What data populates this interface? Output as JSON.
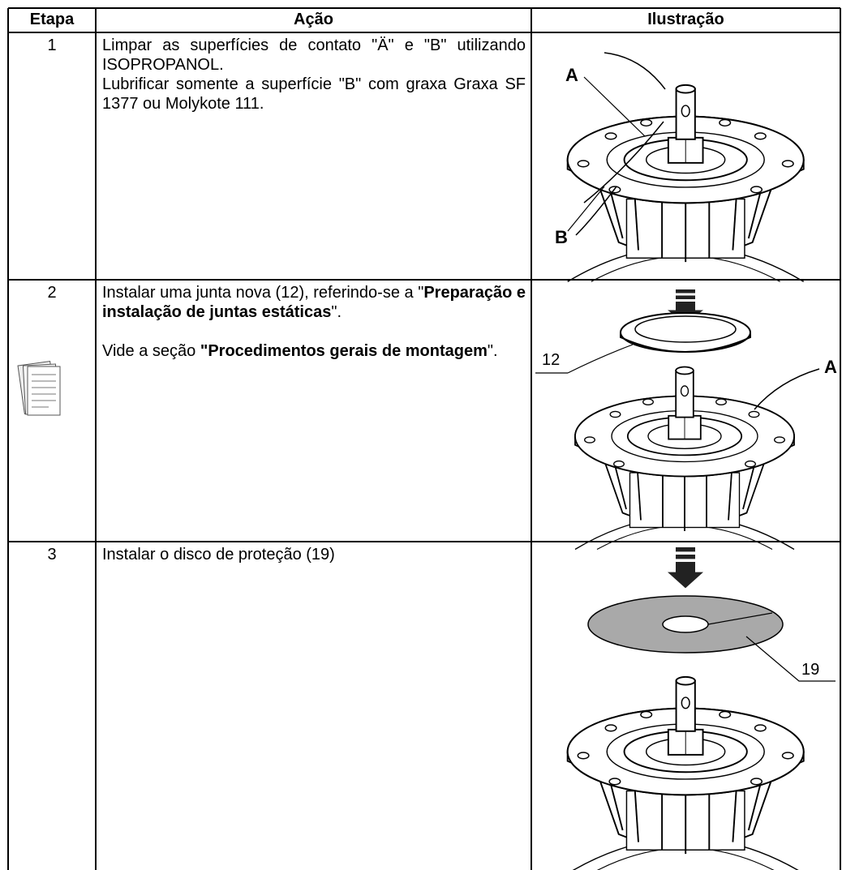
{
  "table": {
    "headers": [
      "Etapa",
      "Ação",
      "Ilustração"
    ],
    "rows": [
      {
        "step": "1",
        "action": [
          [
            {
              "text": "Limpar as superfícies de contato \"Ä\" e \"B\" utilizando ISOPROPANOL.",
              "bold": false
            }
          ],
          [
            {
              "text": "Lubrificar somente a superfície \"B\" com graxa Graxa SF 1377 ou Molykote 111.",
              "bold": false
            }
          ]
        ],
        "labels": [
          "A",
          "B"
        ]
      },
      {
        "step": "2",
        "action": [
          [
            {
              "text": "Instalar uma junta nova (12), referindo-se a \"",
              "bold": false
            },
            {
              "text": "Preparação e instalação de juntas estáticas",
              "bold": true
            },
            {
              "text": "\".",
              "bold": false
            }
          ],
          [
            {
              "text": "Vide a seção ",
              "bold": false
            },
            {
              "text": "\"Procedimentos gerais de montagem",
              "bold": true
            },
            {
              "text": "\".",
              "bold": false
            }
          ]
        ],
        "labels": [
          "12",
          "A"
        ]
      },
      {
        "step": "3",
        "action": [
          [
            {
              "text": "Instalar o disco de proteção (19)",
              "bold": false
            }
          ]
        ],
        "labels": [
          "19"
        ]
      }
    ]
  }
}
